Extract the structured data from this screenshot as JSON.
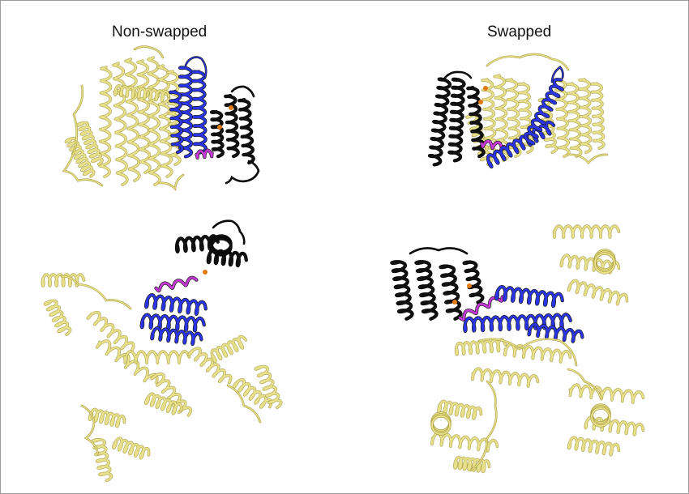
{
  "panels": {
    "left_title": "Non-swapped",
    "right_title": "Swapped"
  },
  "colors": {
    "scaffold": "#e9e08a",
    "scaffold_outline": "#a59b3c",
    "blue_domain": "#2b35e8",
    "magenta_linker": "#c53ad6",
    "black_domain": "#111111",
    "orange_residues": "#e27a12",
    "frame": "#9a9a9a"
  },
  "structures": [
    {
      "name": "non-swapped-side-view",
      "helix_color": "yellow"
    },
    {
      "name": "swapped-side-view",
      "helix_color": "yellow"
    },
    {
      "name": "non-swapped-top-view",
      "helix_color": "yellow"
    },
    {
      "name": "swapped-top-view",
      "helix_color": "yellow"
    }
  ]
}
